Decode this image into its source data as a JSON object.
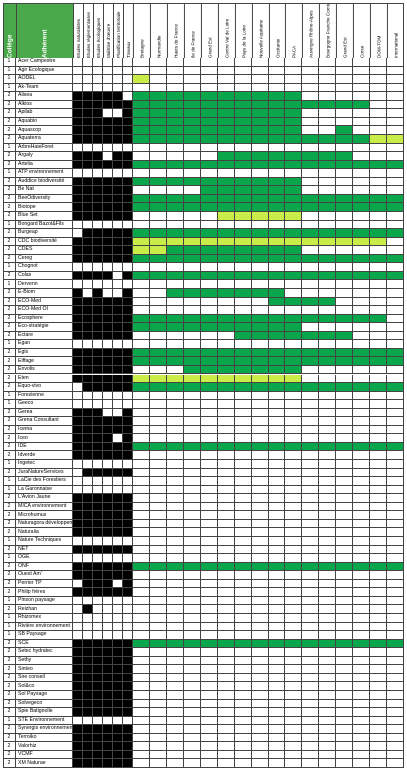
{
  "headers": {
    "college": "Collège",
    "adherent": "Adhérent",
    "activities": [
      "Etudes naturalistes",
      "Etudes réglementaires",
      "Etudes écologiques",
      "Maîtrise d'œuvre",
      "Planification territoriale",
      "Travaux"
    ],
    "regions": [
      "Bretagne",
      "Normandie",
      "Hauts de France",
      "Ile de France",
      "Grand Est",
      "Centre Val de Loire",
      "Pays de la Loire",
      "Nouvelle Aquitaine",
      "Occitanie",
      "PACA",
      "Auvergne Rhône-Alpes",
      "Bourgogne Franche Comté",
      "Grand Est",
      "Corse",
      "DOM-TOM",
      "International"
    ]
  },
  "colors": {
    "header_green": "#49a84a",
    "dark_green": "#0aa64c",
    "light_green": "#c9ed48",
    "black": "#000000"
  },
  "rows": [
    {
      "c": "1",
      "n": "Acer Campestre",
      "a": "000000",
      "r": "0000000000000000"
    },
    {
      "c": "1",
      "n": "Agir Ecologique",
      "a": "000000",
      "r": "0000000000000000"
    },
    {
      "c": "1",
      "n": "AODEL",
      "a": "000000",
      "r": "1000000000000000"
    },
    {
      "c": "1",
      "n": "Ak-Team",
      "a": "000000",
      "r": "0000000000000000"
    },
    {
      "c": "2",
      "n": "Alisea",
      "a": "111110",
      "r": "2222222222000000"
    },
    {
      "c": "2",
      "n": "Alkios",
      "a": "111111",
      "r": "2222222222222200"
    },
    {
      "c": "2",
      "n": "Apilab",
      "a": "111001",
      "r": "2222222222000000"
    },
    {
      "c": "2",
      "n": "Aquabio",
      "a": "111111",
      "r": "2222222222000000"
    },
    {
      "c": "2",
      "n": "Aquascop",
      "a": "111111",
      "r": "2222222222002000"
    },
    {
      "c": "2",
      "n": "Aquaterra",
      "a": "111111",
      "r": "2222222222222211"
    },
    {
      "c": "1",
      "n": "ArbreHaieForet",
      "a": "000000",
      "r": "0000000000000000"
    },
    {
      "c": "2",
      "n": "Argaly",
      "a": "111011",
      "r": "0000022222222000"
    },
    {
      "c": "2",
      "n": "Artelia",
      "a": "111111",
      "r": "2222222222222222"
    },
    {
      "c": "1",
      "n": "ATP environnement",
      "a": "000000",
      "r": "0000000000000000"
    },
    {
      "c": "2",
      "n": "Auddice biodiversité",
      "a": "111111",
      "r": "2222222222000000"
    },
    {
      "c": "2",
      "n": "Be Nat",
      "a": "111111",
      "r": "0000222222000000"
    },
    {
      "c": "2",
      "n": "BeeOdiversity",
      "a": "111111",
      "r": "2222222222222222"
    },
    {
      "c": "2",
      "n": "Biotope",
      "a": "111111",
      "r": "2222222222222222"
    },
    {
      "c": "2",
      "n": "Blue Set",
      "a": "111111",
      "r": "0000011111000000"
    },
    {
      "c": "1",
      "n": "Bongard Bazot&Fils",
      "a": "000000",
      "r": "0000000000000000"
    },
    {
      "c": "2",
      "n": "Burgeap",
      "a": "011111",
      "r": "2222222222222222"
    },
    {
      "c": "2",
      "n": "CDC biodiversité",
      "a": "111111",
      "r": "1111111111111110"
    },
    {
      "c": "2",
      "n": "CDES",
      "a": "111111",
      "r": "1122222222000000"
    },
    {
      "c": "2",
      "n": "Cereg",
      "a": "111111",
      "r": "2222222222222222"
    },
    {
      "c": "1",
      "n": "Chognot",
      "a": "000000",
      "r": "0000000000000000"
    },
    {
      "c": "2",
      "n": "Colas",
      "a": "111101",
      "r": "2222222222222222"
    },
    {
      "c": "1",
      "n": "Dervenn",
      "a": "000000",
      "r": "0000000000000000"
    },
    {
      "c": "2",
      "n": "E-Biom",
      "a": "101001",
      "r": "0022222220000000"
    },
    {
      "c": "2",
      "n": "ECO-Med",
      "a": "111111",
      "r": "0000000022220000"
    },
    {
      "c": "2",
      "n": "ECO-Med OI",
      "a": "111111",
      "r": "0000000000000000"
    },
    {
      "c": "2",
      "n": "Ecosphere",
      "a": "111111",
      "r": "2222222222222220"
    },
    {
      "c": "2",
      "n": "Eco-stratégie",
      "a": "111111",
      "r": "2222222222000000"
    },
    {
      "c": "2",
      "n": "Ectare",
      "a": "111111",
      "r": "0000002222222000"
    },
    {
      "c": "1",
      "n": "Egan",
      "a": "000000",
      "r": "0000000000000000"
    },
    {
      "c": "2",
      "n": "Egis",
      "a": "111111",
      "r": "2222222222222222"
    },
    {
      "c": "2",
      "n": "Eiffage",
      "a": "111111",
      "r": "2222222222222222"
    },
    {
      "c": "2",
      "n": "Envolis",
      "a": "111111",
      "r": "0002222222000000"
    },
    {
      "c": "2",
      "n": "Eten",
      "a": "111111",
      "r": "1111111111000000"
    },
    {
      "c": "2",
      "n": "Equo-vivo",
      "a": "011111",
      "r": "2222222222222222"
    },
    {
      "c": "1",
      "n": "Forezienne",
      "a": "000000",
      "r": "0000000000000000"
    },
    {
      "c": "1",
      "n": "Geeco",
      "a": "000000",
      "r": "0000000000000000"
    },
    {
      "c": "2",
      "n": "Gerea",
      "a": "111001",
      "r": "0000000000000000"
    },
    {
      "c": "2",
      "n": "Grena Consultant",
      "a": "111111",
      "r": "0000000000000000"
    },
    {
      "c": "2",
      "n": "Icema",
      "a": "111111",
      "r": "0000000000000000"
    },
    {
      "c": "2",
      "n": "Iceo",
      "a": "111101",
      "r": "0000000000000000"
    },
    {
      "c": "2",
      "n": "IDE",
      "a": "111111",
      "r": "2222222222222222"
    },
    {
      "c": "2",
      "n": "Idverde",
      "a": "111111",
      "r": "0000000000000000"
    },
    {
      "c": "1",
      "n": "Ingetec",
      "a": "000000",
      "r": "0000000000000000"
    },
    {
      "c": "2",
      "n": "JuraNatureServices",
      "a": "011111",
      "r": "0000000000000000"
    },
    {
      "c": "1",
      "n": "LaCie des Forestiers",
      "a": "000000",
      "r": "0000000000000000"
    },
    {
      "c": "1",
      "n": "La Garonnaise",
      "a": "000000",
      "r": "0000000000000000"
    },
    {
      "c": "2",
      "n": "L'Avion Jaune",
      "a": "111111",
      "r": "0000000000000000"
    },
    {
      "c": "2",
      "n": "MICA environnement",
      "a": "111111",
      "r": "0000000000000000"
    },
    {
      "c": "2",
      "n": "Microhumus",
      "a": "111111",
      "r": "0000000000000000"
    },
    {
      "c": "2",
      "n": "Naturagora développement",
      "a": "111111",
      "r": "0000000000000000"
    },
    {
      "c": "2",
      "n": "Naturalia",
      "a": "111111",
      "r": "0000000000000000"
    },
    {
      "c": "1",
      "n": "Nature Techniques",
      "a": "000000",
      "r": "0000000000000000"
    },
    {
      "c": "2",
      "n": "NET",
      "a": "111111",
      "r": "0000000000000000"
    },
    {
      "c": "1",
      "n": "OGE",
      "a": "000000",
      "r": "0000000000000000"
    },
    {
      "c": "2",
      "n": "ONF",
      "a": "111111",
      "r": "2222222222222222"
    },
    {
      "c": "2",
      "n": "Ouest Am'",
      "a": "111111",
      "r": "0000000000000000"
    },
    {
      "c": "2",
      "n": "Perrier TP",
      "a": "011101",
      "r": "0000000000000000"
    },
    {
      "c": "2",
      "n": "Philip frères",
      "a": "111111",
      "r": "0000000000000000"
    },
    {
      "c": "1",
      "n": "Pinson paysage",
      "a": "000000",
      "r": "0000000000000000"
    },
    {
      "c": "2",
      "n": "Reizhan",
      "a": "010000",
      "r": "0000000000000000"
    },
    {
      "c": "1",
      "n": "Rhizomex",
      "a": "000000",
      "r": "0000000000000000"
    },
    {
      "c": "1",
      "n": "Rivière environnement",
      "a": "000000",
      "r": "0000000000000000"
    },
    {
      "c": "1",
      "n": "SB Paysage",
      "a": "000000",
      "r": "0000000000000000"
    },
    {
      "c": "2",
      "n": "SCE",
      "a": "111111",
      "r": "2222222222222222"
    },
    {
      "c": "2",
      "n": "Setec hydratec",
      "a": "111111",
      "r": "0000000000000000"
    },
    {
      "c": "2",
      "n": "Sethy",
      "a": "111111",
      "r": "0000000000000000"
    },
    {
      "c": "2",
      "n": "Sinteo",
      "a": "111111",
      "r": "0000000000000000"
    },
    {
      "c": "2",
      "n": "Sire conseil",
      "a": "111111",
      "r": "0000000000000000"
    },
    {
      "c": "2",
      "n": "Sol&co",
      "a": "111111",
      "r": "0000000000000000"
    },
    {
      "c": "2",
      "n": "Sol Paysage",
      "a": "111111",
      "r": "0000000000000000"
    },
    {
      "c": "2",
      "n": "Solvegeco",
      "a": "111111",
      "r": "0000000000000000"
    },
    {
      "c": "2",
      "n": "Spie Batignolle",
      "a": "111111",
      "r": "0000000000000000"
    },
    {
      "c": "1",
      "n": "STE Environnement",
      "a": "000000",
      "r": "0000000000000000"
    },
    {
      "c": "2",
      "n": "Synergis environnement",
      "a": "111111",
      "r": "0000000000000000"
    },
    {
      "c": "2",
      "n": "Terroiko",
      "a": "111111",
      "r": "0000000000000000"
    },
    {
      "c": "2",
      "n": "Valorhiz",
      "a": "111111",
      "r": "0000000000000000"
    },
    {
      "c": "2",
      "n": "VCMF",
      "a": "111111",
      "r": "0000000000000000"
    },
    {
      "c": "2",
      "n": "XM Naturae",
      "a": "111111",
      "r": "0000000000000000"
    }
  ]
}
